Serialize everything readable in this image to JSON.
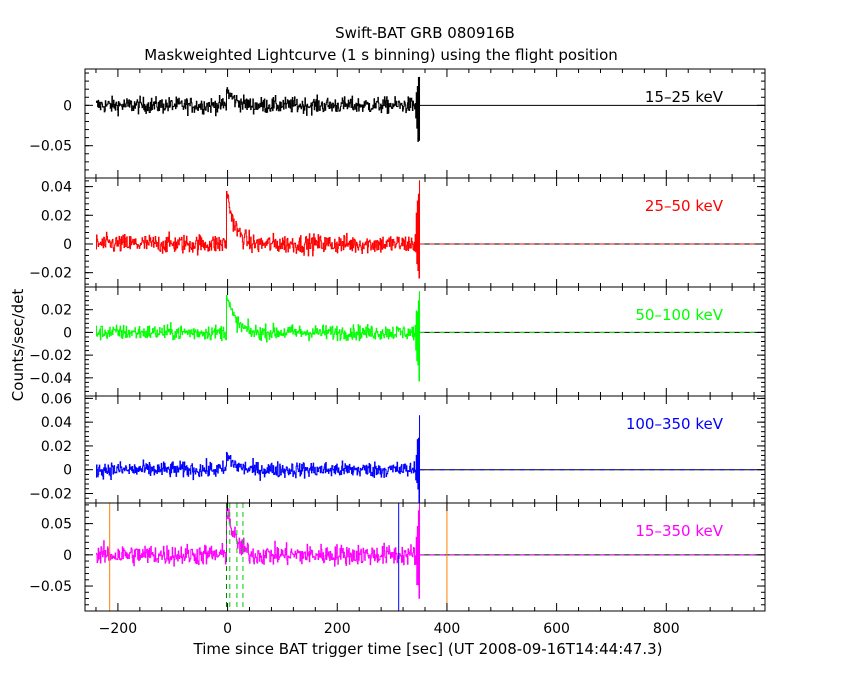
{
  "chart_data": {
    "type": "line",
    "title": "Swift-BAT GRB 080916B",
    "subtitle": "Maskweighted Lightcurve (1 s binning) using the flight position",
    "xlabel": "Time since BAT trigger time [sec] (UT 2008-09-16T14:44:47.3)",
    "ylabel": "Counts/sec/det",
    "xlim": [
      -260,
      980
    ],
    "x_ticks": [
      -200,
      0,
      200,
      400,
      600,
      800
    ],
    "grid": false,
    "panels": [
      {
        "name": "15-25 keV",
        "label": "15–25 keV",
        "color": "#000000",
        "ylim": [
          -0.09,
          0.045
        ],
        "y_ticks": [
          0,
          -0.05
        ],
        "y_tick_labels": [
          "0",
          "−0.05"
        ],
        "data_range": [
          -240,
          350
        ],
        "noise_amplitude": 0.009,
        "peak": 0.018,
        "end_spike_low": -0.055,
        "end_spike_high": 0.035
      },
      {
        "name": "25-50 keV",
        "label": "25–50 keV",
        "color": "#ff0000",
        "ylim": [
          -0.03,
          0.046
        ],
        "y_ticks": [
          -0.02,
          0,
          0.02,
          0.04
        ],
        "y_tick_labels": [
          "−0.02",
          "0",
          "0.02",
          "0.04"
        ],
        "data_range": [
          -240,
          350
        ],
        "noise_amplitude": 0.006,
        "peak": 0.035,
        "end_spike_low": -0.028,
        "end_spike_high": 0.045
      },
      {
        "name": "50-100 keV",
        "label": "50–100 keV",
        "color": "#00ff00",
        "ylim": [
          -0.056,
          0.04
        ],
        "y_ticks": [
          -0.04,
          -0.02,
          0,
          0.02
        ],
        "y_tick_labels": [
          "−0.04",
          "−0.02",
          "0",
          "0.02"
        ],
        "data_range": [
          -240,
          350
        ],
        "noise_amplitude": 0.006,
        "peak": 0.032,
        "end_spike_low": -0.05,
        "end_spike_high": 0.033
      },
      {
        "name": "100-350 keV",
        "label": "100–350 keV",
        "color": "#0000ff",
        "ylim": [
          -0.028,
          0.062
        ],
        "y_ticks": [
          -0.02,
          0,
          0.02,
          0.04,
          0.06
        ],
        "y_tick_labels": [
          "−0.02",
          "0",
          "0.02",
          "0.04",
          "0.06"
        ],
        "data_range": [
          -240,
          350
        ],
        "noise_amplitude": 0.006,
        "peak": 0.012,
        "end_spike_low": -0.025,
        "end_spike_high": 0.04
      },
      {
        "name": "15-350 keV",
        "label": "15–350 keV",
        "color": "#ff00ff",
        "ylim": [
          -0.09,
          0.083
        ],
        "y_ticks": [
          -0.05,
          0,
          0.05
        ],
        "y_tick_labels": [
          "−0.05",
          "0",
          "0.05"
        ],
        "data_range": [
          -240,
          350
        ],
        "noise_amplitude": 0.015,
        "peak": 0.075,
        "end_spike_low": -0.085,
        "end_spike_high": 0.08
      }
    ],
    "markers": [
      {
        "x": -215,
        "color": "#ff8000",
        "style": "solid"
      },
      {
        "x": 400,
        "color": "#ff8000",
        "style": "solid"
      },
      {
        "x": 312,
        "color": "#0000ff",
        "style": "solid"
      },
      {
        "x": -2,
        "color": "#008000",
        "style": "dashed"
      },
      {
        "x": 4,
        "color": "#00cc00",
        "style": "dashed"
      },
      {
        "x": 17,
        "color": "#00cc00",
        "style": "dashed"
      },
      {
        "x": 28,
        "color": "#00cc00",
        "style": "dashed"
      }
    ]
  }
}
